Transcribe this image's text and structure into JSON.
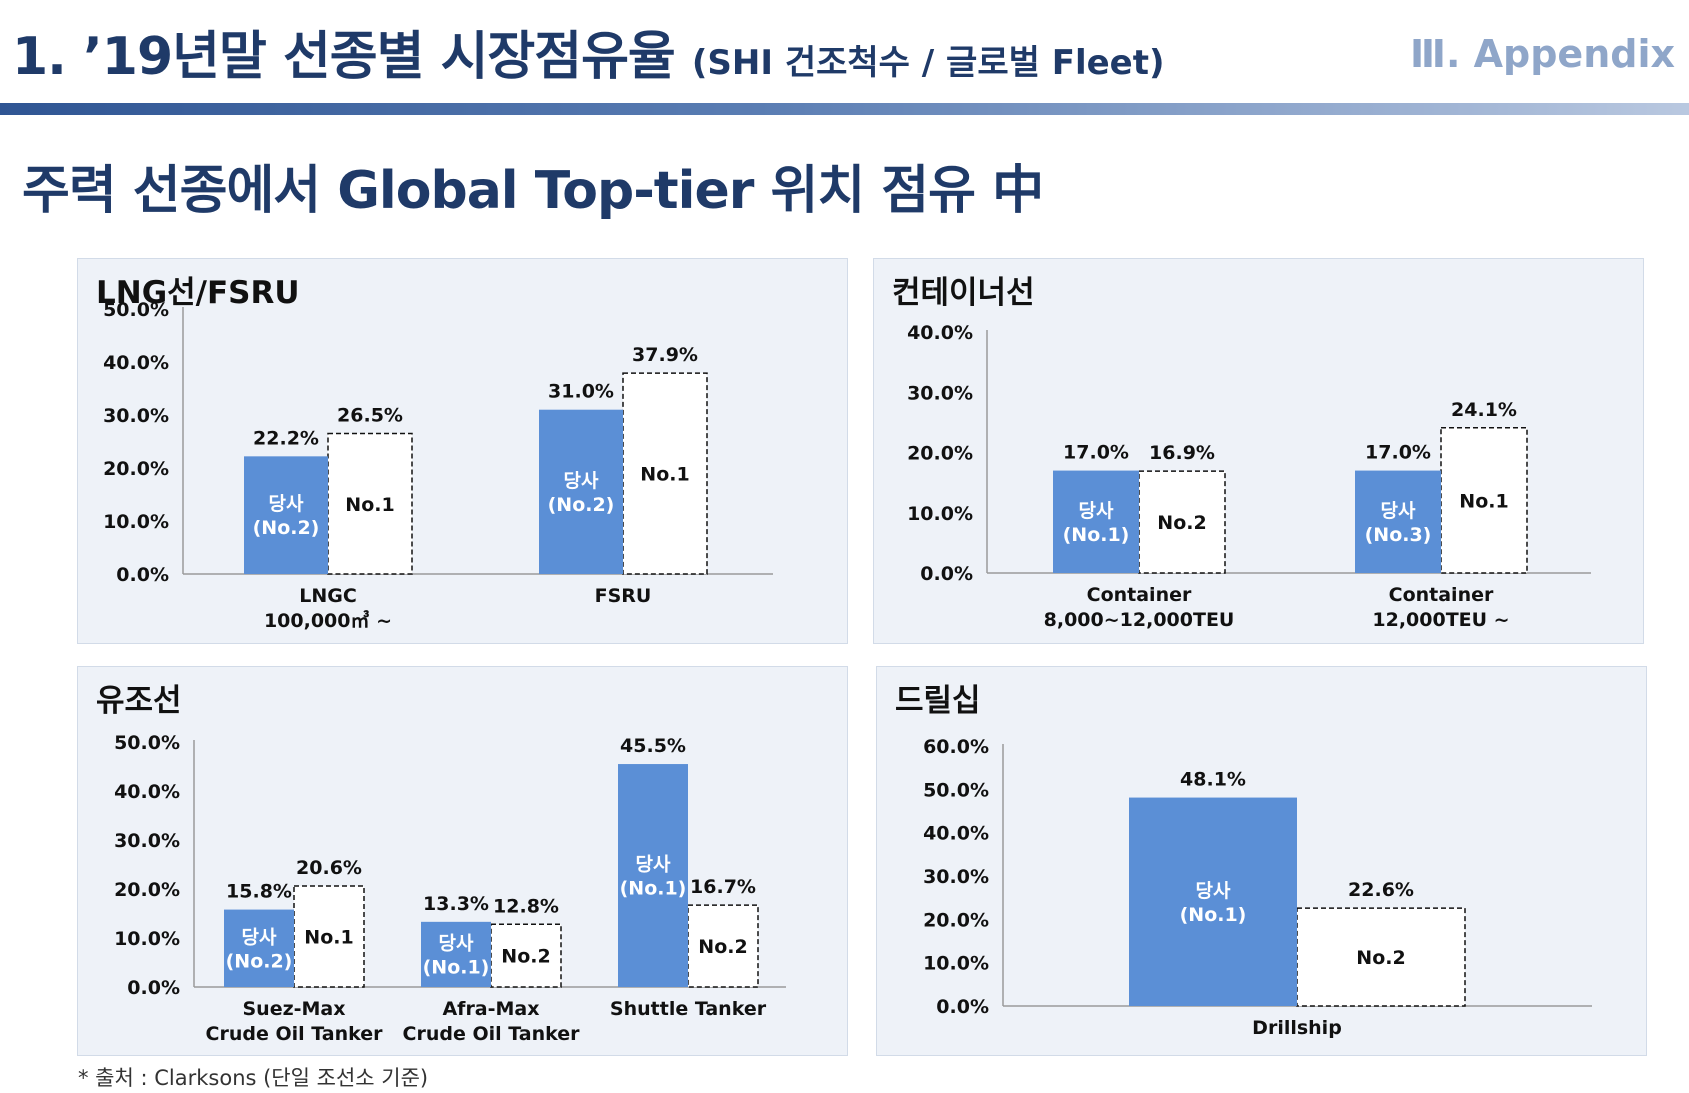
{
  "header": {
    "title": "1. ’19년말 선종별 시장점유율",
    "subtitle": "(SHI 건조척수 / 글로벌 Fleet)",
    "section": "Ⅲ. Appendix",
    "bar_color": "#2f5593"
  },
  "headline": "주력 선종에서 Global Top-tier 위치 점유 中",
  "footnote": "* 출처 : Clarksons (단일 조선소 기준)",
  "colors": {
    "company": "#5b8fd6",
    "competitor_fill": "#ffffff",
    "competitor_border": "#111111",
    "panel_bg": "#eef2f8"
  },
  "chart_data": [
    {
      "type": "bar",
      "title": "LNG선/FSRU",
      "ylim": [
        0,
        50
      ],
      "yticks": [
        "0.0%",
        "10.0%",
        "20.0%",
        "30.0%",
        "40.0%",
        "50.0%"
      ],
      "categories": [
        [
          "LNGC",
          "100,000㎥ ~"
        ],
        [
          "FSRU"
        ]
      ],
      "series": [
        {
          "values": [
            22.2,
            31.0
          ],
          "value_labels": [
            "22.2%",
            "31.0%"
          ],
          "bar_labels": [
            [
              "당사",
              "(No.2)"
            ],
            [
              "당사",
              "(No.2)"
            ]
          ]
        },
        {
          "values": [
            26.5,
            37.9
          ],
          "value_labels": [
            "26.5%",
            "37.9%"
          ],
          "bar_labels": [
            [
              "No.1"
            ],
            [
              "No.1"
            ]
          ]
        }
      ]
    },
    {
      "type": "bar",
      "title": "컨테이너선",
      "ylim": [
        0,
        40
      ],
      "yticks": [
        "0.0%",
        "10.0%",
        "20.0%",
        "30.0%",
        "40.0%"
      ],
      "categories": [
        [
          "Container",
          "8,000~12,000TEU"
        ],
        [
          "Container",
          "12,000TEU ~"
        ]
      ],
      "series": [
        {
          "values": [
            17.0,
            17.0
          ],
          "value_labels": [
            "17.0%",
            "17.0%"
          ],
          "bar_labels": [
            [
              "당사",
              "(No.1)"
            ],
            [
              "당사",
              "(No.3)"
            ]
          ]
        },
        {
          "values": [
            16.9,
            24.1
          ],
          "value_labels": [
            "16.9%",
            "24.1%"
          ],
          "bar_labels": [
            [
              "No.2"
            ],
            [
              "No.1"
            ]
          ]
        }
      ]
    },
    {
      "type": "bar",
      "title": "유조선",
      "ylim": [
        0,
        50
      ],
      "yticks": [
        "0.0%",
        "10.0%",
        "20.0%",
        "30.0%",
        "40.0%",
        "50.0%"
      ],
      "categories": [
        [
          "Suez-Max",
          "Crude Oil Tanker"
        ],
        [
          "Afra-Max",
          "Crude Oil Tanker"
        ],
        [
          "Shuttle Tanker"
        ]
      ],
      "series": [
        {
          "values": [
            15.8,
            13.3,
            45.5
          ],
          "value_labels": [
            "15.8%",
            "13.3%",
            "45.5%"
          ],
          "bar_labels": [
            [
              "당사",
              "(No.2)"
            ],
            [
              "당사",
              "(No.1)"
            ],
            [
              "당사",
              "(No.1)"
            ]
          ]
        },
        {
          "values": [
            20.6,
            12.8,
            16.7
          ],
          "value_labels": [
            "20.6%",
            "12.8%",
            "16.7%"
          ],
          "bar_labels": [
            [
              "No.1"
            ],
            [
              "No.2"
            ],
            [
              "No.2"
            ]
          ]
        }
      ]
    },
    {
      "type": "bar",
      "title": "드릴십",
      "ylim": [
        0,
        60
      ],
      "yticks": [
        "0.0%",
        "10.0%",
        "20.0%",
        "30.0%",
        "40.0%",
        "50.0%",
        "60.0%"
      ],
      "categories": [
        [
          "Drillship"
        ]
      ],
      "series": [
        {
          "values": [
            48.1
          ],
          "value_labels": [
            "48.1%"
          ],
          "bar_labels": [
            [
              "당사",
              "(No.1)"
            ]
          ]
        },
        {
          "values": [
            22.6
          ],
          "value_labels": [
            "22.6%"
          ],
          "bar_labels": [
            [
              "No.2"
            ]
          ]
        }
      ]
    }
  ]
}
